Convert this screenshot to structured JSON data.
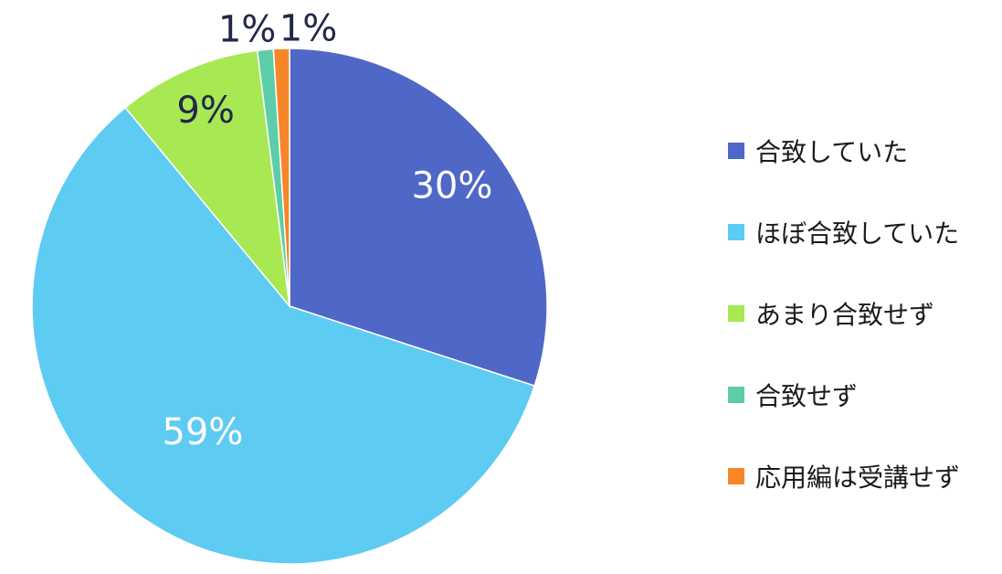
{
  "chart_data": {
    "type": "pie",
    "title": "",
    "legend_position": "right",
    "slices": [
      {
        "label": "合致していた",
        "value": 30,
        "display": "30%",
        "color": "#4f67c7",
        "label_color": "#ffffff"
      },
      {
        "label": "ほぼ合致していた",
        "value": 59,
        "display": "59%",
        "color": "#5ecbf3",
        "label_color": "#ffffff"
      },
      {
        "label": "あまり合致せず",
        "value": 9,
        "display": "9%",
        "color": "#a8e852",
        "label_color": "#22284a"
      },
      {
        "label": "合致せず",
        "value": 1,
        "display": "1%",
        "color": "#5ccda8",
        "label_color": "#22284a"
      },
      {
        "label": "応用編は受講せず",
        "value": 1,
        "display": "1%",
        "color": "#f7862a",
        "label_color": "#22284a"
      }
    ]
  }
}
